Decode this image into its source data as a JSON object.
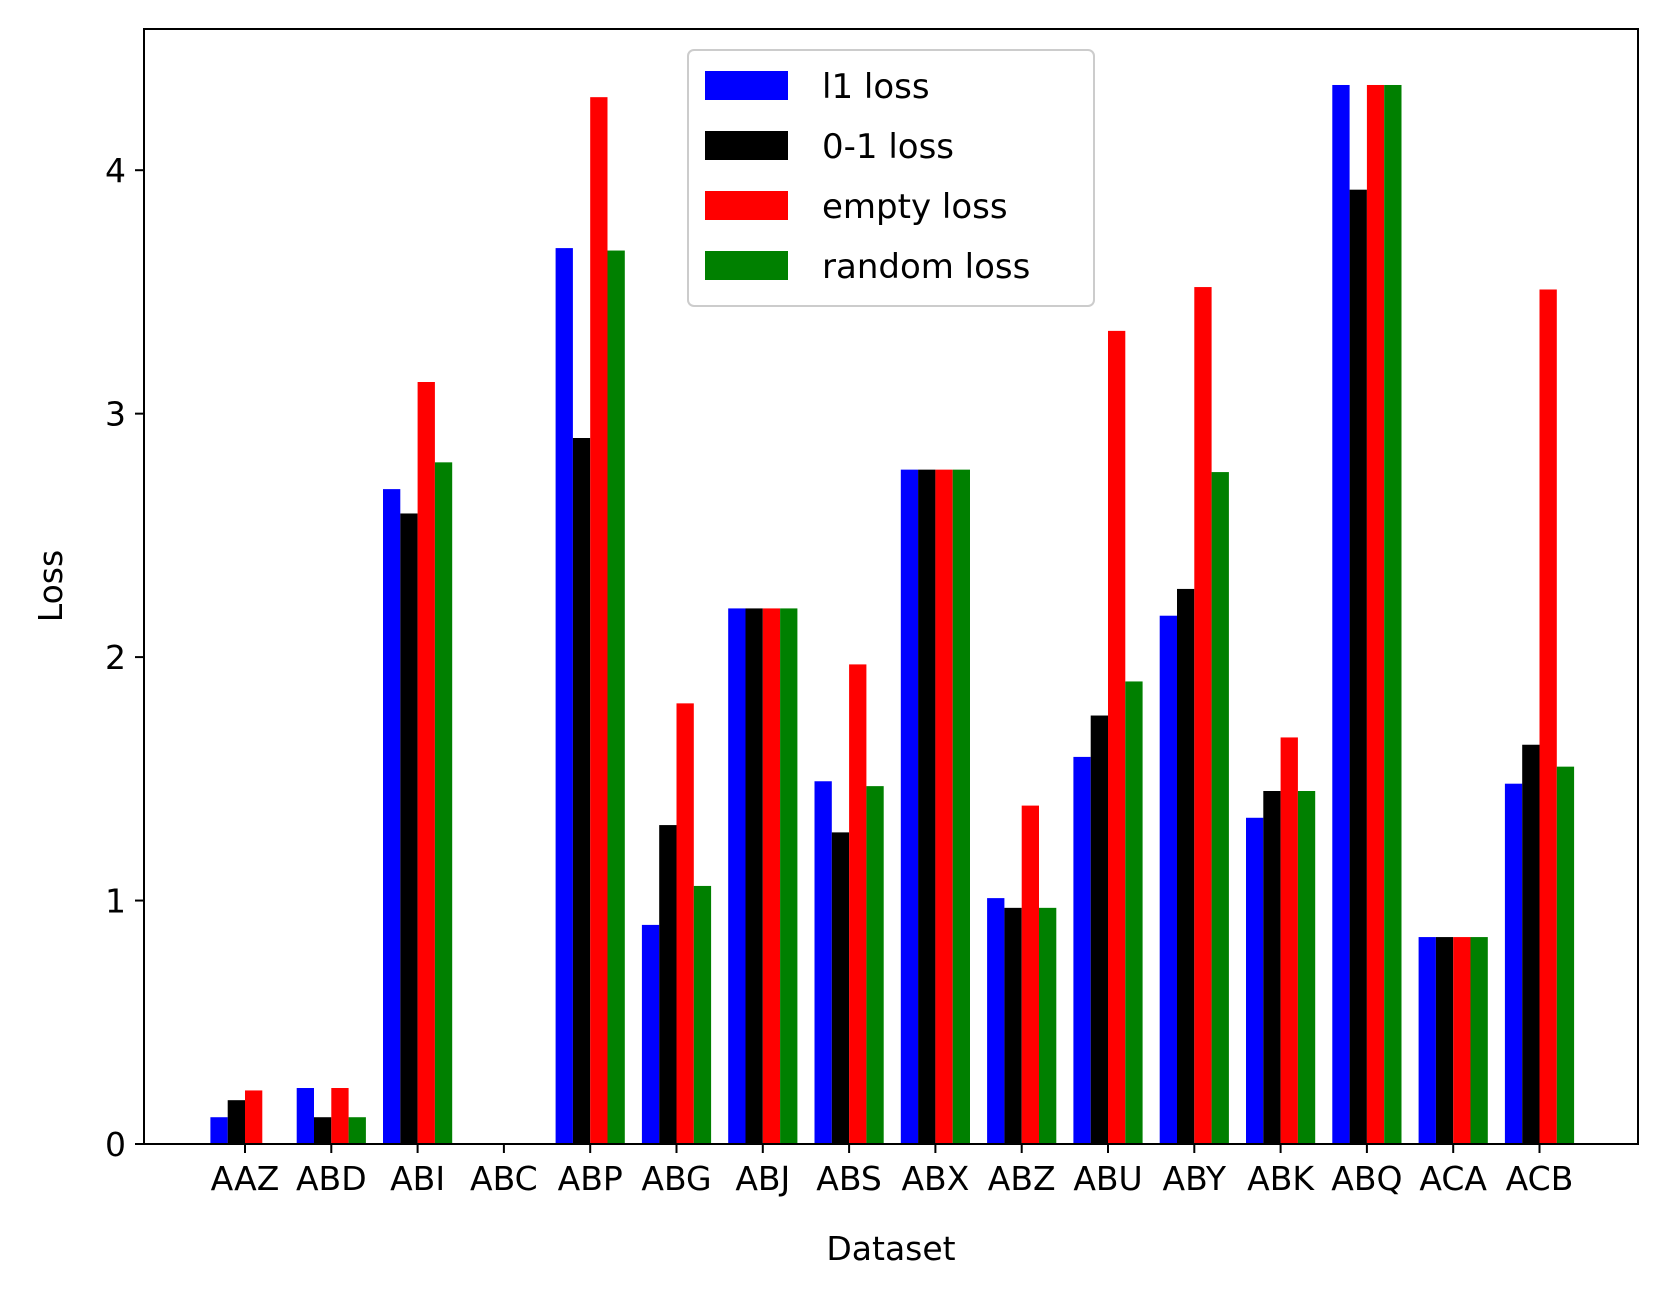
{
  "chart_data": {
    "type": "bar",
    "title": "",
    "xlabel": "Dataset",
    "ylabel": "Loss",
    "ylim": [
      0,
      4.58
    ],
    "yticks": [
      0,
      1,
      2,
      3,
      4
    ],
    "grid": false,
    "legend_position": "top-center",
    "categories": [
      "AAZ",
      "ABD",
      "ABI",
      "ABC",
      "ABP",
      "ABG",
      "ABJ",
      "ABS",
      "ABX",
      "ABZ",
      "ABU",
      "ABY",
      "ABK",
      "ABQ",
      "ACA",
      "ACB"
    ],
    "series": [
      {
        "name": "l1 loss",
        "color": "#0000ff",
        "values": [
          0.11,
          0.23,
          2.69,
          0,
          3.68,
          0.9,
          2.2,
          1.49,
          2.77,
          1.01,
          1.59,
          2.17,
          1.34,
          4.35,
          0.85,
          1.48
        ]
      },
      {
        "name": "0-1 loss",
        "color": "#000000",
        "values": [
          0.18,
          0.11,
          2.59,
          0,
          2.9,
          1.31,
          2.2,
          1.28,
          2.77,
          0.97,
          1.76,
          2.28,
          1.45,
          3.92,
          0.85,
          1.64
        ]
      },
      {
        "name": "empty loss",
        "color": "#ff0000",
        "values": [
          0.22,
          0.23,
          3.13,
          0,
          4.3,
          1.81,
          2.2,
          1.97,
          2.77,
          1.39,
          3.34,
          3.52,
          1.67,
          4.35,
          0.85,
          3.51
        ]
      },
      {
        "name": "random loss",
        "color": "#008000",
        "values": [
          0,
          0.11,
          2.8,
          0,
          3.67,
          1.06,
          2.2,
          1.47,
          2.77,
          0.97,
          1.9,
          2.76,
          1.45,
          4.35,
          0.85,
          1.55
        ]
      }
    ]
  }
}
